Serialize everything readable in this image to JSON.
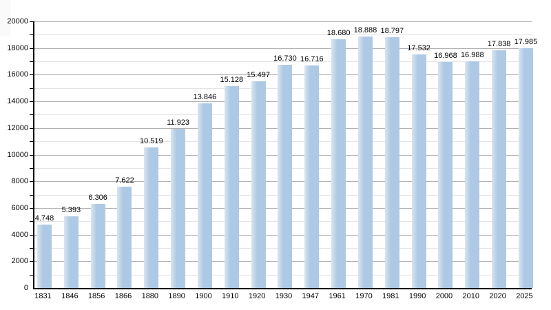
{
  "chart_data": {
    "type": "bar",
    "title": "",
    "xlabel": "",
    "ylabel": "",
    "categories": [
      "1831",
      "1846",
      "1856",
      "1866",
      "1880",
      "1890",
      "1900",
      "1910",
      "1920",
      "1930",
      "1947",
      "1961",
      "1970",
      "1981",
      "1990",
      "2000",
      "2010",
      "2020",
      "2025"
    ],
    "values": [
      4748,
      5393,
      6306,
      7622,
      10519,
      11923,
      13846,
      15128,
      15497,
      16730,
      16716,
      18680,
      18888,
      18797,
      17532,
      16968,
      16988,
      17838,
      17985
    ],
    "value_labels": [
      "4.748",
      "5.393",
      "6.306",
      "7.622",
      "10.519",
      "11.923",
      "13.846",
      "15.128",
      "15.497",
      "16.730",
      "16.716",
      "18.680",
      "18.888",
      "18.797",
      "17.532",
      "16.968",
      "16.988",
      "17.838",
      "17.985"
    ],
    "ylim": [
      0,
      20000
    ],
    "y_major_step": 2000,
    "y_minor_step": 1000,
    "y_tick_labels": [
      "0",
      "2000",
      "4000",
      "6000",
      "8000",
      "10000",
      "12000",
      "14000",
      "16000",
      "18000",
      "20000"
    ],
    "grid": true,
    "legend": "none",
    "bar_color": "#aec9e4",
    "bar_highlight_color": "#d9e5f2",
    "grid_major_color": "#b2b2b2",
    "grid_minor_color": "#e4e4e4",
    "axis_color": "#000000",
    "text_color": "#000000",
    "background_color": "#ffffff"
  }
}
